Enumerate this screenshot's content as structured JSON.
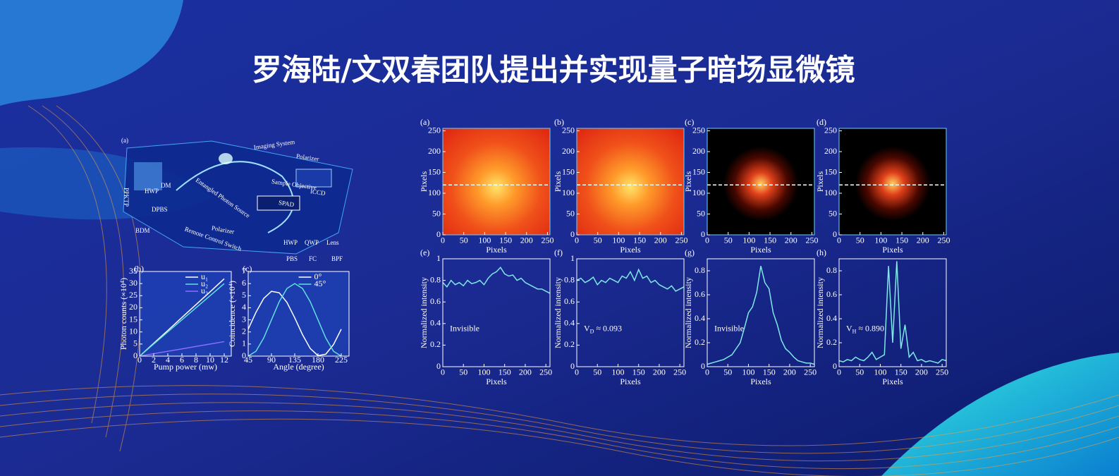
{
  "title": "罗海陆/文双春团队提出并实现量子暗场显微镜",
  "setup": {
    "panel_label": "(a)",
    "labels": [
      "Imaging System",
      "Polarizer",
      "Sample Objective",
      "ICCD",
      "SPAD",
      "DM",
      "HWP",
      "DPBS",
      "BDM",
      "PPKTP",
      "Entangled Photon Source",
      "Remote Control Switch",
      "Polarizer",
      "HWP",
      "QWP",
      "Lens",
      "PBS",
      "FC",
      "BPF"
    ]
  },
  "chart_data": [
    {
      "type": "line",
      "panel_label": "(b)",
      "x_label": "Pump power (mw)",
      "y_label": "Photon counts (×10⁴)",
      "xlim": [
        0,
        13
      ],
      "ylim": [
        0,
        35
      ],
      "xticks": [
        0,
        2,
        4,
        6,
        8,
        10,
        12
      ],
      "yticks": [
        0,
        5,
        10,
        15,
        20,
        25,
        30,
        35
      ],
      "x": [
        0,
        2,
        4,
        6,
        8,
        10,
        12
      ],
      "series": [
        {
          "name": "u₁",
          "color": "#ffffff",
          "values": [
            0,
            5.3,
            10.6,
            16,
            21.3,
            26.6,
            32
          ]
        },
        {
          "name": "u₂",
          "color": "#5fe0e0",
          "values": [
            0,
            5,
            10,
            15,
            20,
            25,
            30
          ]
        },
        {
          "name": "u₃",
          "color": "#8a6cff",
          "values": [
            0,
            1,
            2,
            3,
            4,
            5,
            6
          ]
        }
      ]
    },
    {
      "type": "line",
      "panel_label": "(c)",
      "x_label": "Angle (degree)",
      "y_label": "Coincidence (×10⁴)",
      "xlim": [
        45,
        240
      ],
      "ylim": [
        0,
        7
      ],
      "xticks": [
        45,
        90,
        135,
        180,
        225
      ],
      "yticks": [
        0,
        1,
        2,
        3,
        4,
        5,
        6,
        7
      ],
      "x": [
        45,
        60,
        75,
        90,
        105,
        120,
        135,
        150,
        165,
        180,
        195,
        210,
        225
      ],
      "series": [
        {
          "name": "0°",
          "color": "#ffffff",
          "values": [
            2.23,
            3.62,
            4.77,
            5.36,
            5.24,
            4.44,
            3.17,
            1.78,
            0.63,
            0.04,
            0.16,
            0.96,
            2.23
          ]
        },
        {
          "name": "45°",
          "color": "#5fe0e0",
          "values": [
            0,
            0.4,
            1.5,
            3,
            4.5,
            5.6,
            6,
            5.6,
            4.5,
            3,
            1.5,
            0.4,
            0
          ]
        }
      ]
    },
    {
      "type": "image",
      "panel_label": "(a)",
      "style": "bright",
      "x_label": "Pixels",
      "y_label": "Pixels",
      "xlim": [
        0,
        256
      ],
      "ylim": [
        0,
        256
      ],
      "xticks": [
        0,
        50,
        100,
        150,
        200,
        250
      ],
      "yticks": [
        0,
        50,
        100,
        150,
        200,
        250
      ],
      "cut_line": 120
    },
    {
      "type": "image",
      "panel_label": "(b)",
      "style": "bright",
      "x_label": "Pixels",
      "y_label": "Pixels",
      "xlim": [
        0,
        256
      ],
      "ylim": [
        0,
        256
      ],
      "xticks": [
        0,
        50,
        100,
        150,
        200,
        250
      ],
      "yticks": [
        0,
        50,
        100,
        150,
        200,
        250
      ],
      "cut_line": 120
    },
    {
      "type": "image",
      "panel_label": "(c)",
      "style": "dark",
      "x_label": "Pixels",
      "y_label": "Pixels",
      "xlim": [
        0,
        256
      ],
      "ylim": [
        0,
        256
      ],
      "xticks": [
        0,
        50,
        100,
        150,
        200,
        250
      ],
      "yticks": [
        0,
        50,
        100,
        150,
        200,
        250
      ],
      "cut_line": 120
    },
    {
      "type": "image",
      "panel_label": "(d)",
      "style": "dark",
      "x_label": "Pixels",
      "y_label": "Pixels",
      "xlim": [
        0,
        256
      ],
      "ylim": [
        0,
        256
      ],
      "xticks": [
        0,
        50,
        100,
        150,
        200,
        250
      ],
      "yticks": [
        0,
        50,
        100,
        150,
        200,
        250
      ],
      "cut_line": 120
    },
    {
      "type": "line",
      "panel_label": "(e)",
      "x_label": "Pixels",
      "y_label": "Normalized intensity",
      "xlim": [
        0,
        260
      ],
      "ylim": [
        0,
        1
      ],
      "xticks": [
        0,
        50,
        100,
        150,
        200,
        250
      ],
      "yticks": [
        0,
        0.2,
        0.4,
        0.6,
        0.8,
        1
      ],
      "color": "#7fe8e8",
      "x": [
        0,
        10,
        20,
        30,
        40,
        50,
        60,
        70,
        80,
        90,
        100,
        110,
        120,
        130,
        140,
        150,
        160,
        170,
        180,
        190,
        200,
        210,
        220,
        230,
        240,
        250,
        260
      ],
      "values": [
        0.78,
        0.74,
        0.8,
        0.76,
        0.78,
        0.75,
        0.8,
        0.77,
        0.78,
        0.8,
        0.76,
        0.82,
        0.86,
        0.88,
        0.92,
        0.86,
        0.84,
        0.85,
        0.8,
        0.82,
        0.78,
        0.76,
        0.74,
        0.72,
        0.72,
        0.7,
        0.68
      ],
      "annotation": {
        "text": "Invisible"
      }
    },
    {
      "type": "line",
      "panel_label": "(f)",
      "x_label": "Pixels",
      "y_label": "Normalized intensity",
      "xlim": [
        0,
        260
      ],
      "ylim": [
        0,
        1
      ],
      "xticks": [
        0,
        50,
        100,
        150,
        200,
        250
      ],
      "yticks": [
        0,
        0.2,
        0.4,
        0.6,
        0.8,
        1
      ],
      "color": "#7fe8e8",
      "x": [
        0,
        10,
        20,
        30,
        40,
        50,
        60,
        70,
        80,
        90,
        100,
        110,
        120,
        130,
        140,
        150,
        160,
        170,
        180,
        190,
        200,
        210,
        220,
        230,
        240,
        250,
        260
      ],
      "values": [
        0.8,
        0.82,
        0.78,
        0.8,
        0.83,
        0.76,
        0.8,
        0.78,
        0.82,
        0.8,
        0.78,
        0.84,
        0.82,
        0.88,
        0.8,
        0.9,
        0.82,
        0.84,
        0.78,
        0.8,
        0.76,
        0.74,
        0.72,
        0.75,
        0.7,
        0.72,
        0.74
      ],
      "annotation": {
        "text": "V",
        "sub": "D",
        "tail": " ≈ 0.093"
      }
    },
    {
      "type": "line",
      "panel_label": "(g)",
      "x_label": "Pixels",
      "y_label": "Normalized intensity",
      "xlim": [
        0,
        260
      ],
      "ylim": [
        0,
        0.9
      ],
      "xticks": [
        0,
        50,
        100,
        150,
        200,
        250
      ],
      "yticks": [
        0,
        0.2,
        0.4,
        0.6,
        0.8
      ],
      "color": "#7fe8e8",
      "x": [
        0,
        10,
        20,
        30,
        40,
        50,
        60,
        70,
        80,
        90,
        100,
        110,
        120,
        130,
        140,
        150,
        160,
        170,
        180,
        190,
        200,
        210,
        220,
        230,
        240,
        250,
        260
      ],
      "values": [
        0.02,
        0.03,
        0.04,
        0.05,
        0.06,
        0.08,
        0.1,
        0.15,
        0.2,
        0.32,
        0.45,
        0.5,
        0.62,
        0.84,
        0.7,
        0.65,
        0.45,
        0.35,
        0.22,
        0.15,
        0.12,
        0.08,
        0.05,
        0.04,
        0.03,
        0.03,
        0.02
      ],
      "annotation": {
        "text": "Invisible"
      }
    },
    {
      "type": "line",
      "panel_label": "(h)",
      "x_label": "Pixels",
      "y_label": "Normalized intensity",
      "xlim": [
        0,
        260
      ],
      "ylim": [
        0,
        0.9
      ],
      "xticks": [
        0,
        50,
        100,
        150,
        200,
        250
      ],
      "yticks": [
        0,
        0.2,
        0.4,
        0.6,
        0.8
      ],
      "color": "#7fe8e8",
      "x": [
        0,
        10,
        20,
        30,
        40,
        50,
        60,
        70,
        80,
        90,
        100,
        110,
        120,
        130,
        140,
        150,
        160,
        170,
        180,
        190,
        200,
        210,
        220,
        230,
        240,
        250,
        260
      ],
      "values": [
        0.05,
        0.04,
        0.06,
        0.05,
        0.08,
        0.06,
        0.05,
        0.08,
        0.12,
        0.06,
        0.08,
        0.1,
        0.84,
        0.2,
        0.88,
        0.15,
        0.35,
        0.08,
        0.12,
        0.05,
        0.06,
        0.04,
        0.05,
        0.04,
        0.03,
        0.06,
        0.05
      ],
      "annotation": {
        "text": "V",
        "sub": "H",
        "tail": " ≈ 0.890"
      }
    }
  ]
}
